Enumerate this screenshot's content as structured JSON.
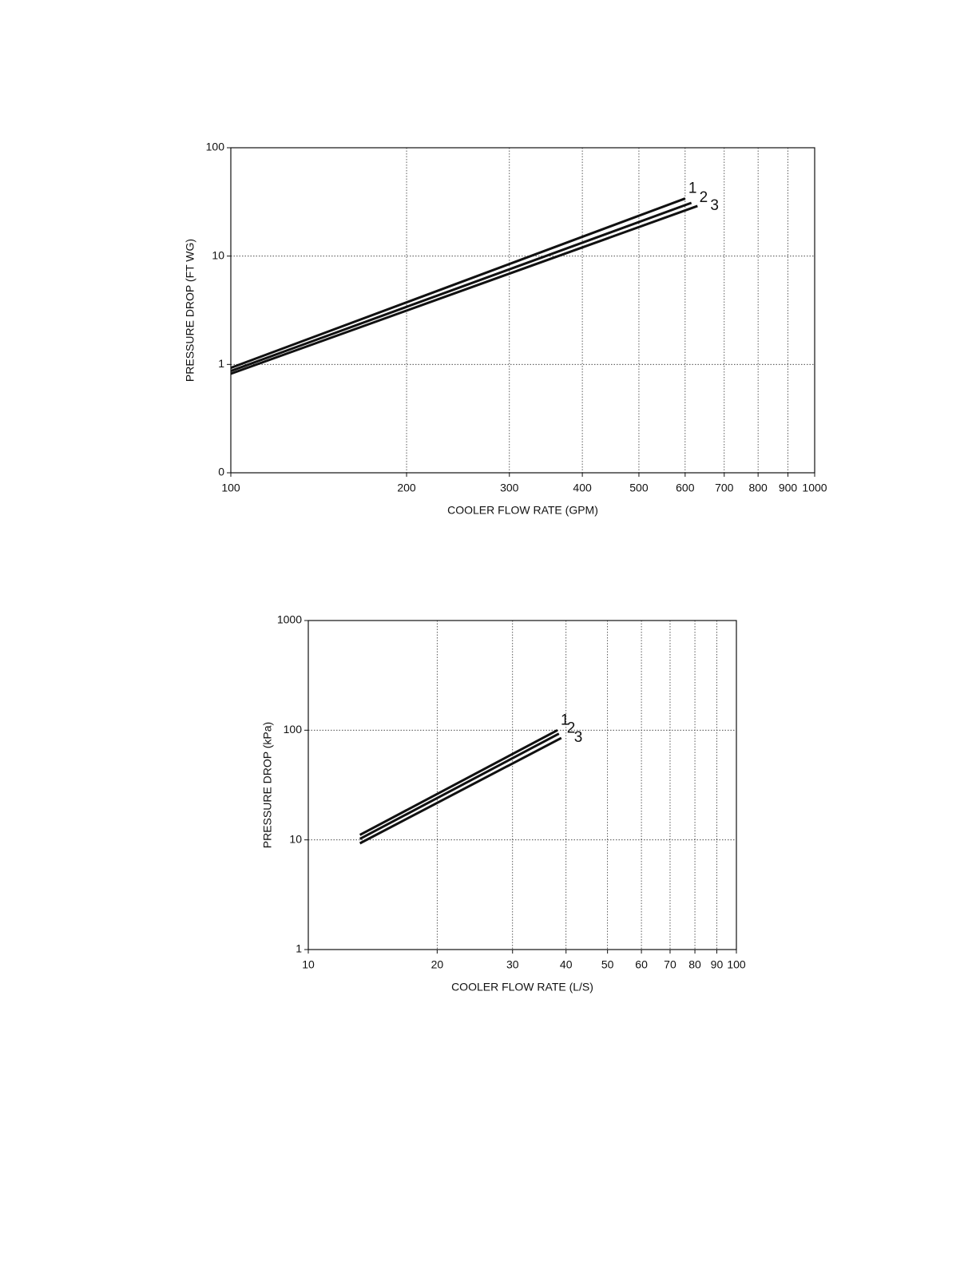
{
  "chart_data": [
    {
      "type": "line",
      "x_label": "COOLER FLOW RATE (GPM)",
      "y_label": "PRESSURE DROP (FT WG)",
      "log_x": true,
      "log_y": true,
      "grid": true,
      "xlim": [
        100,
        1000
      ],
      "xticks": [
        100,
        200,
        300,
        400,
        500,
        600,
        700,
        800,
        900,
        1000
      ],
      "ylim": [
        0.1,
        100
      ],
      "yticks": [
        {
          "value": 0.1,
          "label": "0"
        },
        1,
        10,
        100
      ],
      "series": [
        {
          "name": "1",
          "color": "#111111",
          "x": [
            100,
            600
          ],
          "values": [
            0.93,
            34
          ]
        },
        {
          "name": "2",
          "color": "#111111",
          "x": [
            100,
            615
          ],
          "values": [
            0.87,
            31
          ]
        },
        {
          "name": "3",
          "color": "#111111",
          "x": [
            100,
            630
          ],
          "values": [
            0.82,
            29
          ]
        }
      ]
    },
    {
      "type": "line",
      "x_label": "COOLER FLOW RATE (L/S)",
      "y_label": "PRESSURE DROP (kPa)",
      "log_x": true,
      "log_y": true,
      "grid": true,
      "xlim": [
        10,
        100
      ],
      "xticks": [
        10,
        20,
        30,
        40,
        50,
        60,
        70,
        80,
        90,
        100
      ],
      "ylim": [
        1,
        1000
      ],
      "yticks": [
        1,
        10,
        100,
        1000
      ],
      "series": [
        {
          "name": "1",
          "color": "#111111",
          "x": [
            13.2,
            38.2
          ],
          "values": [
            11.1,
            100
          ]
        },
        {
          "name": "2",
          "color": "#111111",
          "x": [
            13.2,
            38.5
          ],
          "values": [
            10.2,
            93
          ]
        },
        {
          "name": "3",
          "color": "#111111",
          "x": [
            13.2,
            39
          ],
          "values": [
            9.3,
            85
          ]
        }
      ]
    }
  ]
}
